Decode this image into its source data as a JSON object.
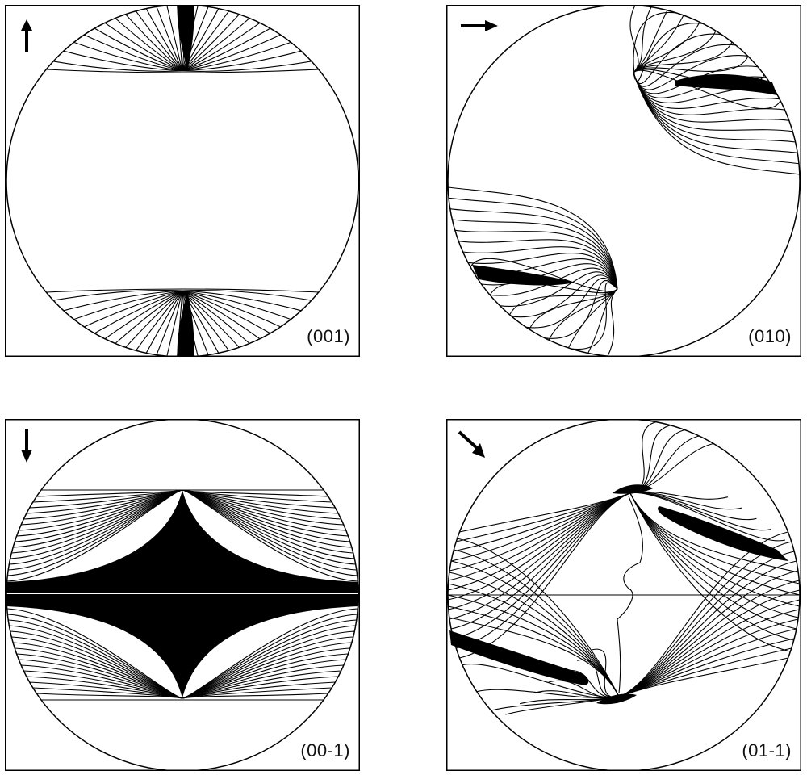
{
  "panels": [
    {
      "label": "(001)",
      "arrow": "arrow-up-icon"
    },
    {
      "label": "(010)",
      "arrow": "arrow-right-icon"
    },
    {
      "label": "(00-1)",
      "arrow": "arrow-down-icon"
    },
    {
      "label": "(01-1)",
      "arrow": "arrow-down-right-icon"
    }
  ]
}
